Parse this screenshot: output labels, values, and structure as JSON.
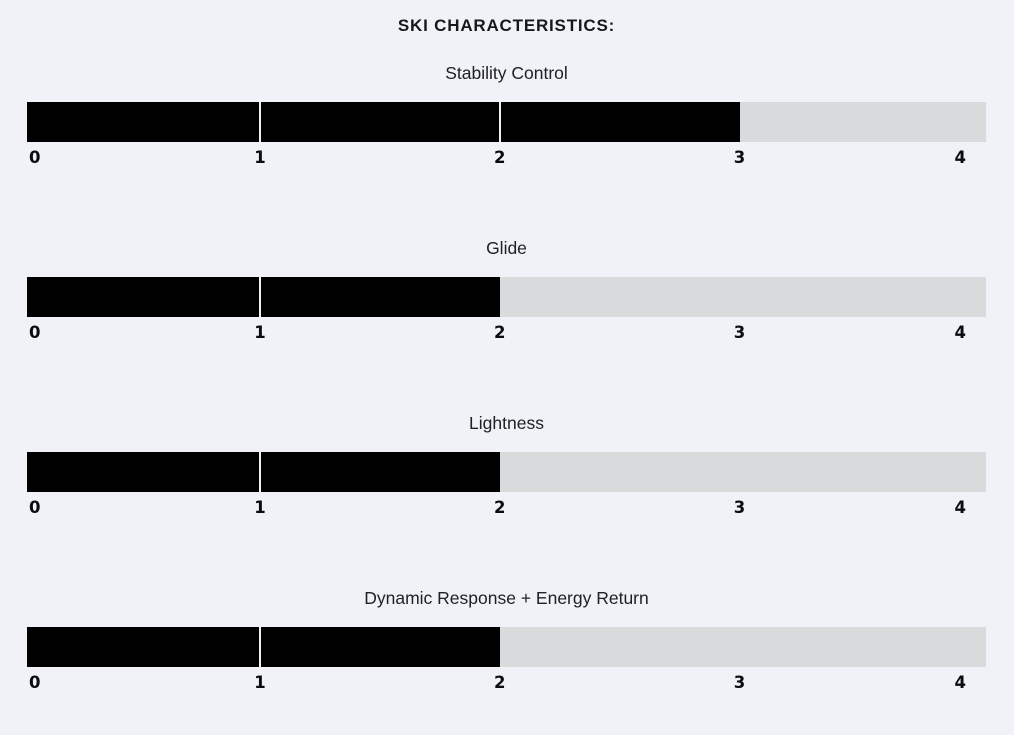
{
  "title": "SKI CHARACTERISTICS:",
  "scale": {
    "min": 0,
    "max": 4,
    "ticks": [
      "0",
      "1",
      "2",
      "3",
      "4"
    ]
  },
  "metrics": [
    {
      "label": "Stability Control",
      "value": 3
    },
    {
      "label": "Glide",
      "value": 2
    },
    {
      "label": "Lightness",
      "value": 2
    },
    {
      "label": "Dynamic Response + Energy Return",
      "value": 2
    }
  ],
  "colors": {
    "background": "#f0f2f7",
    "bar_fill": "#000000",
    "bar_track": "#d8dadc",
    "segment_divider": "#eff2f7",
    "text": "#202124"
  },
  "chart_data": {
    "type": "bar",
    "orientation": "horizontal",
    "title": "SKI CHARACTERISTICS:",
    "categories": [
      "Stability Control",
      "Glide",
      "Lightness",
      "Dynamic Response + Energy Return"
    ],
    "values": [
      3,
      2,
      2,
      2
    ],
    "xlabel": "",
    "ylabel": "",
    "xlim": [
      0,
      4
    ],
    "x_ticks": [
      0,
      1,
      2,
      3,
      4
    ],
    "grid": false,
    "legend": false,
    "notes": "Each gauge is a full-width track; filled portion black with thin light dividers at integer boundaries; unfilled portion light gray; bold tick labels 0-4 under each bar."
  }
}
